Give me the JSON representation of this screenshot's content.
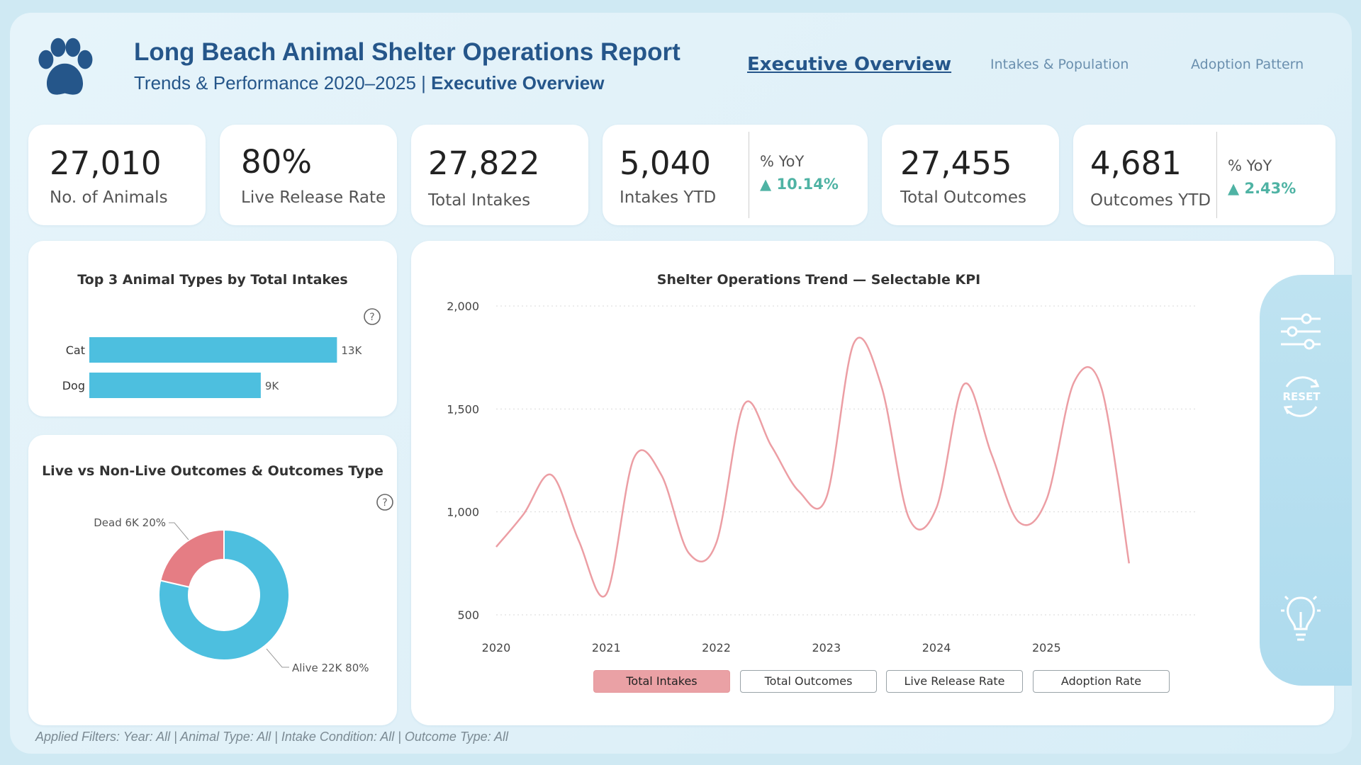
{
  "header": {
    "title": "Long Beach Animal Shelter Operations Report",
    "subtitle_prefix": "Trends & Performance 2020–2025 | ",
    "subtitle_bold": "Executive Overview",
    "logo_icon": "paw-icon"
  },
  "nav": {
    "items": [
      {
        "label": "Executive Overview",
        "active": true
      },
      {
        "label": "Intakes & Population",
        "active": false
      },
      {
        "label": "Adoption Pattern",
        "active": false
      }
    ]
  },
  "kpis": [
    {
      "value": "27,010",
      "label": "No. of Animals"
    },
    {
      "value": "80%",
      "label": "Live Release Rate"
    },
    {
      "value": "27,822",
      "label": "Total Intakes"
    },
    {
      "value": "5,040",
      "label": "Intakes YTD",
      "yoy_label": "% YoY",
      "yoy_value": "▲ 10.14%"
    },
    {
      "value": "27,455",
      "label": "Total Outcomes"
    },
    {
      "value": "4,681",
      "label": "Outcomes YTD",
      "yoy_label": "% YoY",
      "yoy_value": "▲ 2.43%"
    }
  ],
  "colors": {
    "accent": "#4dbfdf",
    "dead": "#e57d84",
    "line": "#ec9ea4",
    "title": "#25568a",
    "yoy": "#4fb3a4"
  },
  "chart_data": [
    {
      "type": "bar",
      "orientation": "horizontal",
      "title": "Top 3 Animal Types by Total Intakes",
      "categories": [
        "Cat",
        "Dog"
      ],
      "values": [
        13000,
        9000
      ],
      "data_labels": [
        "13K",
        "9K"
      ],
      "xlim": [
        0,
        16000
      ]
    },
    {
      "type": "pie",
      "donut": true,
      "title": "Live vs Non-Live Outcomes & Outcomes Type",
      "labels": [
        "Alive",
        "Dead"
      ],
      "values": [
        22000,
        6000
      ],
      "percents": [
        80,
        20
      ],
      "data_labels": [
        "Alive 22K 80%",
        "Dead 6K 20%"
      ]
    },
    {
      "type": "line",
      "title": "Shelter Operations Trend — Selectable KPI",
      "series_name": "Total Intakes",
      "x_ticks": [
        "2020",
        "2021",
        "2022",
        "2023",
        "2024",
        "2025"
      ],
      "y_ticks": [
        "2,000",
        "1,500",
        "1,000",
        "500"
      ],
      "ylim": [
        500,
        2000
      ],
      "xlim": [
        2020,
        2025.75
      ],
      "grid": true,
      "x": [
        2020,
        2020.25,
        2020.5,
        2020.75,
        2021,
        2021.25,
        2021.5,
        2021.75,
        2022,
        2022.25,
        2022.5,
        2022.75,
        2023,
        2023.25,
        2023.5,
        2023.75,
        2024,
        2024.25,
        2024.5,
        2024.75,
        2025,
        2025.25,
        2025.5,
        2025.75
      ],
      "values": [
        830,
        990,
        1180,
        860,
        600,
        1260,
        1180,
        800,
        850,
        1520,
        1320,
        1100,
        1070,
        1820,
        1610,
        970,
        1020,
        1620,
        1280,
        950,
        1060,
        1630,
        1600,
        750
      ]
    }
  ],
  "kpi_selector": {
    "buttons": [
      {
        "label": "Total Intakes",
        "active": true
      },
      {
        "label": "Total Outcomes",
        "active": false
      },
      {
        "label": "Live Release Rate",
        "active": false
      },
      {
        "label": "Adoption Rate",
        "active": false
      }
    ]
  },
  "side_tools": {
    "filter_icon": "sliders-icon",
    "reset_label": "RESET",
    "insight_icon": "lightbulb-icon"
  },
  "filters_text": "Applied Filters: Year: All | Animal Type: All | Intake Condition: All | Outcome Type: All"
}
